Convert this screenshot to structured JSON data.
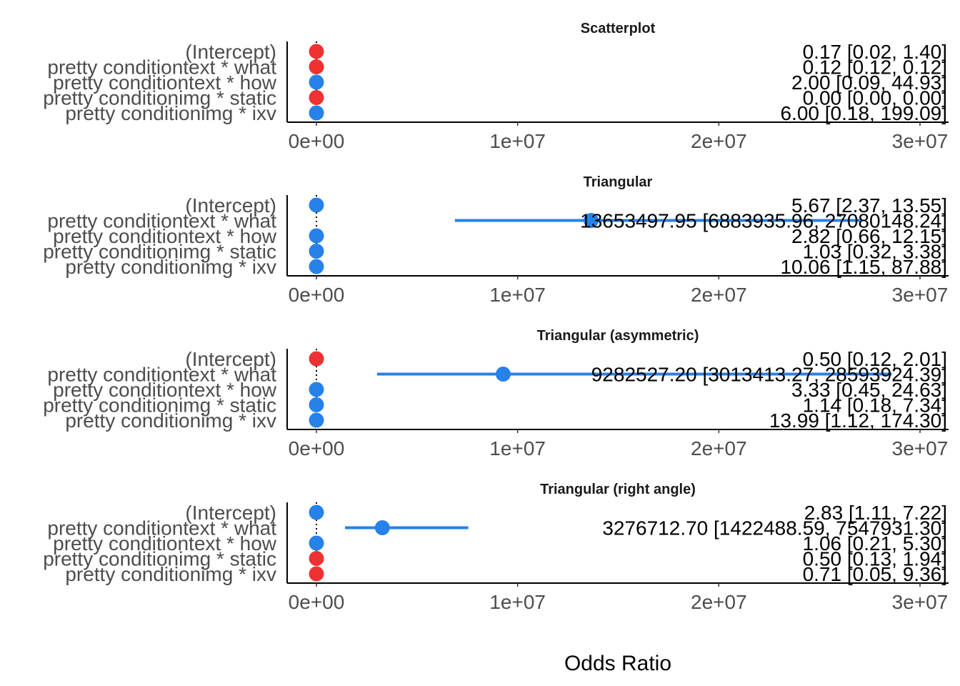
{
  "chart_data": {
    "type": "scatter",
    "xlabel": "Odds Ratio",
    "xlim": [
      0,
      30000000
    ],
    "x_ticks": [
      "0e+00",
      "1e+07",
      "2e+07",
      "3e+07"
    ],
    "x_tick_values": [
      0,
      10000000,
      20000000,
      30000000
    ],
    "terms": [
      "(Intercept)",
      "pretty conditiontext * what",
      "pretty conditiontext * how",
      "pretty conditionimg * static",
      "pretty conditionimg * ixv"
    ],
    "grid": false,
    "colors": {
      "positive": "#2681ea",
      "negative": "#ef3133",
      "axis": "#000000",
      "zero_line": "#000000"
    },
    "panels": [
      {
        "title": "Scatterplot",
        "rows": [
          {
            "estimate": 0.17,
            "low": 0.02,
            "high": 1.4,
            "direction": "negative",
            "label": "0.17 [0.02, 1.40]"
          },
          {
            "estimate": 0.12,
            "low": 0.12,
            "high": 0.12,
            "direction": "negative",
            "label": "0.12 [0.12, 0.12]"
          },
          {
            "estimate": 2.0,
            "low": 0.09,
            "high": 44.93,
            "direction": "positive",
            "label": "2.00 [0.09, 44.93]"
          },
          {
            "estimate": 0.0,
            "low": 0.0,
            "high": 0.0,
            "direction": "negative",
            "label": "0.00 [0.00, 0.00]"
          },
          {
            "estimate": 6.0,
            "low": 0.18,
            "high": 199.09,
            "direction": "positive",
            "label": "6.00 [0.18, 199.09]"
          }
        ]
      },
      {
        "title": "Triangular",
        "rows": [
          {
            "estimate": 5.67,
            "low": 2.37,
            "high": 13.55,
            "direction": "positive",
            "label": "5.67 [2.37, 13.55]"
          },
          {
            "estimate": 13653497.95,
            "low": 6883935.96,
            "high": 27080148.24,
            "direction": "positive",
            "label": "13653497.95 [6883935.96, 27080148.24]"
          },
          {
            "estimate": 2.82,
            "low": 0.66,
            "high": 12.15,
            "direction": "positive",
            "label": "2.82 [0.66, 12.15]"
          },
          {
            "estimate": 1.03,
            "low": 0.32,
            "high": 3.38,
            "direction": "positive",
            "label": "1.03 [0.32, 3.38]"
          },
          {
            "estimate": 10.06,
            "low": 1.15,
            "high": 87.88,
            "direction": "positive",
            "label": "10.06 [1.15, 87.88]"
          }
        ]
      },
      {
        "title": "Triangular (asymmetric)",
        "rows": [
          {
            "estimate": 0.5,
            "low": 0.12,
            "high": 2.01,
            "direction": "negative",
            "label": "0.50 [0.12, 2.01]"
          },
          {
            "estimate": 9282527.2,
            "low": 3013413.27,
            "high": 28593924.39,
            "direction": "positive",
            "label": "9282527.20 [3013413.27, 28593924.39]"
          },
          {
            "estimate": 3.33,
            "low": 0.45,
            "high": 24.63,
            "direction": "positive",
            "label": "3.33 [0.45, 24.63]"
          },
          {
            "estimate": 1.14,
            "low": 0.18,
            "high": 7.34,
            "direction": "positive",
            "label": "1.14 [0.18, 7.34]"
          },
          {
            "estimate": 13.99,
            "low": 1.12,
            "high": 174.3,
            "direction": "positive",
            "label": "13.99 [1.12, 174.30]"
          }
        ]
      },
      {
        "title": "Triangular (right angle)",
        "rows": [
          {
            "estimate": 2.83,
            "low": 1.11,
            "high": 7.22,
            "direction": "positive",
            "label": "2.83 [1.11, 7.22]"
          },
          {
            "estimate": 3276712.7,
            "low": 1422488.59,
            "high": 7547931.3,
            "direction": "positive",
            "label": "3276712.70 [1422488.59, 7547931.30]"
          },
          {
            "estimate": 1.06,
            "low": 0.21,
            "high": 5.3,
            "direction": "positive",
            "label": "1.06 [0.21, 5.30]"
          },
          {
            "estimate": 0.5,
            "low": 0.13,
            "high": 1.94,
            "direction": "negative",
            "label": "0.50 [0.13, 1.94]"
          },
          {
            "estimate": 0.71,
            "low": 0.05,
            "high": 9.36,
            "direction": "negative",
            "label": "0.71 [0.05, 9.36]"
          }
        ]
      }
    ]
  }
}
